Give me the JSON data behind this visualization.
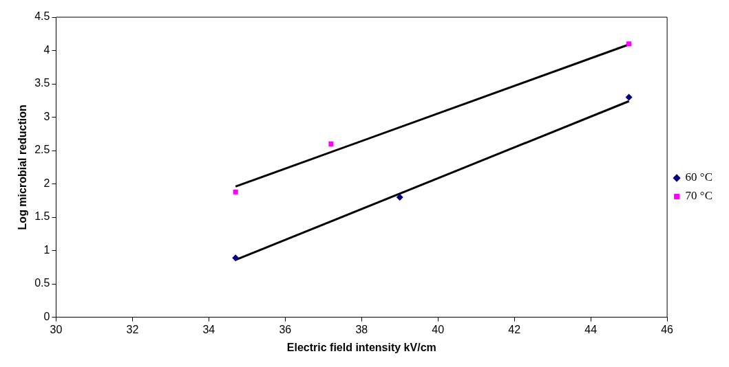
{
  "chart_data": {
    "type": "scatter",
    "xlabel": "Electric field intensity kV/cm",
    "ylabel": "Log microbial reduction",
    "xlim": [
      30,
      46
    ],
    "xticks": [
      30,
      32,
      34,
      36,
      38,
      40,
      42,
      44,
      46
    ],
    "ylim": [
      0,
      4.5
    ],
    "yticks": [
      0,
      0.5,
      1,
      1.5,
      2,
      2.5,
      3,
      3.5,
      4,
      4.5
    ],
    "grid": false,
    "legend": "right",
    "series": [
      {
        "name": "60 °C",
        "color": "#000080",
        "marker": "diamond",
        "x": [
          34.7,
          39,
          45
        ],
        "values": [
          0.89,
          1.8,
          3.3
        ]
      },
      {
        "name": "70 °C",
        "color": "#ff00ff",
        "marker": "square",
        "x": [
          34.7,
          37.2,
          45
        ],
        "values": [
          1.88,
          2.6,
          4.1
        ]
      },
      {
        "type": "line",
        "color": "#000000",
        "marker": "none",
        "x": [
          34.7,
          45
        ],
        "values": [
          0.86,
          3.24
        ]
      },
      {
        "type": "line",
        "color": "#000000",
        "marker": "none",
        "x": [
          34.7,
          45
        ],
        "values": [
          1.96,
          4.09
        ]
      }
    ]
  }
}
